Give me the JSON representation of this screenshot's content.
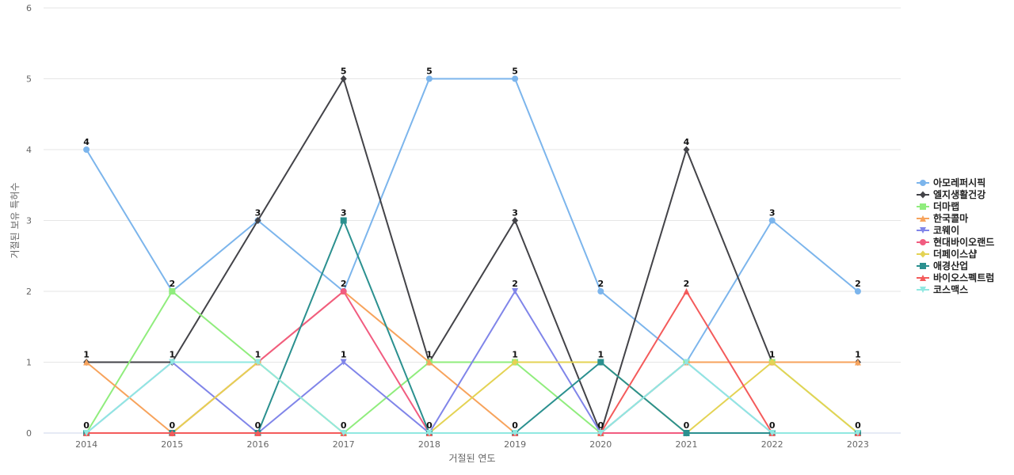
{
  "chart_data": {
    "type": "line",
    "title": "",
    "xlabel": "거절된 연도",
    "ylabel": "거절된 보유 특허수",
    "categories": [
      "2014",
      "2015",
      "2016",
      "2017",
      "2018",
      "2019",
      "2020",
      "2021",
      "2022",
      "2023"
    ],
    "ylim": [
      0,
      6
    ],
    "yticks": [
      0,
      1,
      2,
      3,
      4,
      5,
      6
    ],
    "grid": true,
    "legend_position": "right",
    "series": [
      {
        "name": "아모레퍼시픽",
        "color": "#7cb5ec",
        "marker": "circle",
        "values": [
          4,
          2,
          3,
          2,
          5,
          5,
          2,
          1,
          3,
          2
        ]
      },
      {
        "name": "엘지생활건강",
        "color": "#434348",
        "marker": "diamond",
        "values": [
          1,
          1,
          3,
          5,
          1,
          3,
          0,
          4,
          1,
          1
        ]
      },
      {
        "name": "더마랩",
        "color": "#90ed7d",
        "marker": "square",
        "values": [
          0,
          2,
          1,
          0,
          1,
          1,
          0,
          1,
          1,
          0
        ]
      },
      {
        "name": "한국콜마",
        "color": "#f7a35c",
        "marker": "triangle",
        "values": [
          1,
          0,
          1,
          2,
          1,
          0,
          0,
          1,
          1,
          1
        ]
      },
      {
        "name": "코웨이",
        "color": "#8085e9",
        "marker": "triangle-down",
        "values": [
          0,
          1,
          0,
          1,
          0,
          2,
          0,
          1,
          0,
          0
        ]
      },
      {
        "name": "현대바이오랜드",
        "color": "#f15c80",
        "marker": "circle",
        "values": [
          0,
          0,
          1,
          2,
          0,
          0,
          0,
          0,
          0,
          0
        ]
      },
      {
        "name": "더페이스샵",
        "color": "#e4d354",
        "marker": "diamond",
        "values": [
          0,
          0,
          1,
          0,
          0,
          1,
          1,
          0,
          1,
          0
        ]
      },
      {
        "name": "애경산업",
        "color": "#2b908f",
        "marker": "square",
        "values": [
          0,
          0,
          0,
          3,
          0,
          0,
          1,
          0,
          0,
          0
        ]
      },
      {
        "name": "바이오스펙트럼",
        "color": "#f45b5b",
        "marker": "triangle",
        "values": [
          0,
          0,
          0,
          0,
          0,
          0,
          0,
          2,
          0,
          0
        ]
      },
      {
        "name": "코스맥스",
        "color": "#91e8e1",
        "marker": "triangle-down",
        "values": [
          0,
          1,
          1,
          0,
          0,
          0,
          0,
          1,
          0,
          0
        ]
      }
    ],
    "data_labels": {
      "series_index": [
        1,
        0,
        0,
        0,
        0,
        0,
        0,
        0,
        0,
        0
      ],
      "upper_values": [
        4,
        2,
        3,
        5,
        5,
        5,
        2,
        4,
        3,
        2
      ],
      "lower_values": [
        1,
        1,
        1,
        3,
        1,
        3,
        1,
        2,
        1,
        1
      ],
      "zero_values": [
        0,
        0,
        0,
        0,
        0,
        0,
        0,
        0,
        0,
        0
      ],
      "middle_values": [
        null,
        null,
        null,
        2,
        null,
        2,
        null,
        null,
        null,
        null
      ],
      "mid_lower_values": [
        null,
        null,
        null,
        1,
        null,
        1,
        null,
        null,
        null,
        null
      ]
    }
  }
}
